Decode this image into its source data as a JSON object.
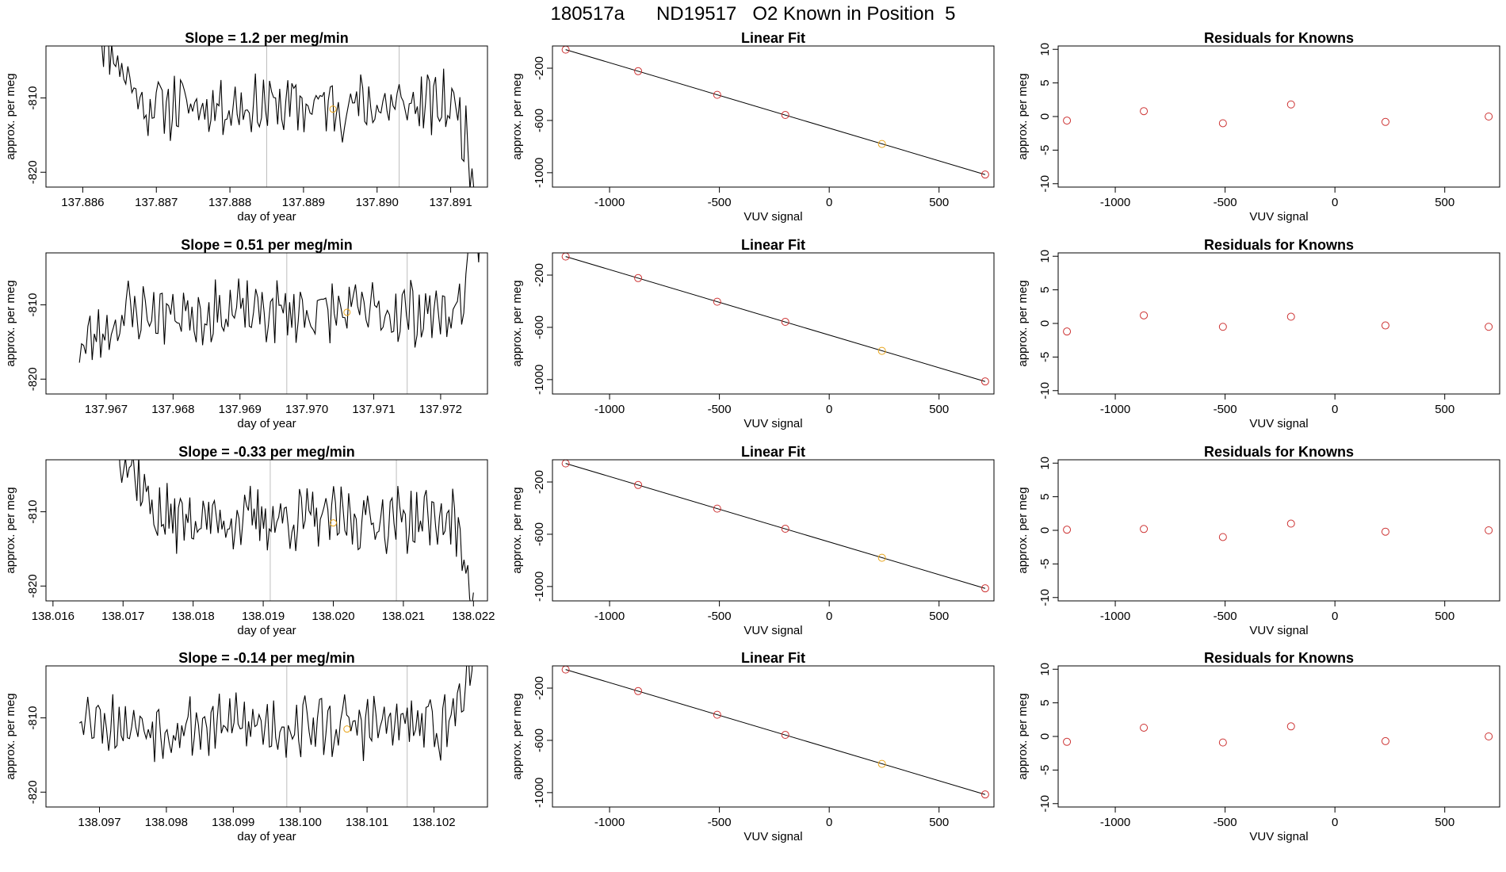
{
  "page": {
    "title": "180517a      ND19517   O2 Known in Position  5"
  },
  "colors": {
    "line": "#000000",
    "points": "#cd3333",
    "highlight": "#e8a317",
    "vertical_markers": "#bebebe"
  },
  "chart_data": [
    {
      "type": "line",
      "row": 1,
      "title": "Slope =  1.2  per meg/min",
      "xlabel": "day of year",
      "ylabel": "approx. per meg",
      "xlim": [
        137.8855,
        137.8915
      ],
      "ylim": [
        -822,
        -803
      ],
      "x_ticks": [
        "137.886",
        "137.887",
        "137.888",
        "137.889",
        "137.890",
        "137.891"
      ],
      "x_tick_values": [
        137.886,
        137.887,
        137.888,
        137.889,
        137.89,
        137.891
      ],
      "y_ticks": [
        "-810",
        "-820"
      ],
      "y_tick_values": [
        -810,
        -820
      ],
      "x_range": [
        137.8862,
        137.8914
      ],
      "trace_shape": {
        "start": -800,
        "settle": -811,
        "end": -824,
        "seed": 11
      },
      "vertical_lines": [
        137.8885,
        137.8903
      ],
      "highlight_point": {
        "x": 137.8894,
        "y": -811.5
      }
    },
    {
      "type": "scatter",
      "row": 1,
      "title": "Linear Fit",
      "xlabel": "VUV signal",
      "ylabel": "approx. per meg",
      "xlim": [
        -1260,
        750
      ],
      "ylim": [
        -1110,
        -30
      ],
      "x_ticks": [
        "-1000",
        "-500",
        "0",
        "500"
      ],
      "x_tick_values": [
        -1000,
        -500,
        0,
        500
      ],
      "y_ticks": [
        "-200",
        "-600",
        "-1000"
      ],
      "y_tick_values": [
        -200,
        -600,
        -1000
      ],
      "x": [
        -1200,
        -870,
        -510,
        -200,
        240,
        710
      ],
      "y": [
        -58,
        -223,
        -404,
        -558,
        -780,
        -1014
      ],
      "highlight_index": 4
    },
    {
      "type": "scatter",
      "row": 1,
      "title": "Residuals for Knowns",
      "xlabel": "VUV signal",
      "ylabel": "approx. per meg",
      "xlim": [
        -1260,
        750
      ],
      "ylim": [
        -10.5,
        10.5
      ],
      "x_ticks": [
        "-1000",
        "-500",
        "0",
        "500"
      ],
      "x_tick_values": [
        -1000,
        -500,
        0,
        500
      ],
      "y_ticks": [
        "-10",
        "-5",
        "0",
        "5",
        "10"
      ],
      "y_tick_values": [
        -10,
        -5,
        0,
        5,
        10
      ],
      "x": [
        -1220,
        -870,
        -510,
        -200,
        230,
        700
      ],
      "y": [
        -0.6,
        0.8,
        -1.0,
        1.8,
        -0.8,
        0.0
      ]
    },
    {
      "type": "line",
      "row": 2,
      "title": "Slope =  0.51  per meg/min",
      "xlabel": "day of year",
      "ylabel": "approx. per meg",
      "xlim": [
        137.9661,
        137.9727
      ],
      "ylim": [
        -822,
        -803
      ],
      "x_ticks": [
        "137.967",
        "137.968",
        "137.969",
        "137.970",
        "137.971",
        "137.972"
      ],
      "x_tick_values": [
        137.967,
        137.968,
        137.969,
        137.97,
        137.971,
        137.972
      ],
      "y_ticks": [
        "-810",
        "-820"
      ],
      "y_tick_values": [
        -810,
        -820
      ],
      "x_range": [
        137.9666,
        137.9726
      ],
      "trace_shape": {
        "start": -816,
        "settle": -811,
        "end": -800,
        "seed": 23
      },
      "vertical_lines": [
        137.9697,
        137.9715
      ],
      "highlight_point": {
        "x": 137.9706,
        "y": -811
      }
    },
    {
      "type": "scatter",
      "row": 2,
      "title": "Linear Fit",
      "xlabel": "VUV signal",
      "ylabel": "approx. per meg",
      "xlim": [
        -1260,
        750
      ],
      "ylim": [
        -1110,
        -30
      ],
      "x_ticks": [
        "-1000",
        "-500",
        "0",
        "500"
      ],
      "x_tick_values": [
        -1000,
        -500,
        0,
        500
      ],
      "y_ticks": [
        "-200",
        "-600",
        "-1000"
      ],
      "y_tick_values": [
        -200,
        -600,
        -1000
      ],
      "x": [
        -1200,
        -870,
        -510,
        -200,
        240,
        710
      ],
      "y": [
        -58,
        -223,
        -404,
        -558,
        -780,
        -1014
      ],
      "highlight_index": 4
    },
    {
      "type": "scatter",
      "row": 2,
      "title": "Residuals for Knowns",
      "xlabel": "VUV signal",
      "ylabel": "approx. per meg",
      "xlim": [
        -1260,
        750
      ],
      "ylim": [
        -10.5,
        10.5
      ],
      "x_ticks": [
        "-1000",
        "-500",
        "0",
        "500"
      ],
      "x_tick_values": [
        -1000,
        -500,
        0,
        500
      ],
      "y_ticks": [
        "-10",
        "-5",
        "0",
        "5",
        "10"
      ],
      "y_tick_values": [
        -10,
        -5,
        0,
        5,
        10
      ],
      "x": [
        -1220,
        -870,
        -510,
        -200,
        230,
        700
      ],
      "y": [
        -1.2,
        1.2,
        -0.5,
        1.0,
        -0.3,
        -0.5
      ]
    },
    {
      "type": "line",
      "row": 3,
      "title": "Slope =  -0.33  per meg/min",
      "xlabel": "day of year",
      "ylabel": "approx. per meg",
      "xlim": [
        138.0159,
        138.0222
      ],
      "ylim": [
        -822,
        -803
      ],
      "x_ticks": [
        "138.016",
        "138.017",
        "138.018",
        "138.019",
        "138.020",
        "138.021",
        "138.022"
      ],
      "x_tick_values": [
        138.016,
        138.017,
        138.018,
        138.019,
        138.02,
        138.021,
        138.022
      ],
      "y_ticks": [
        "-810",
        "-820"
      ],
      "y_tick_values": [
        -810,
        -820
      ],
      "x_range": [
        138.0169,
        138.022
      ],
      "trace_shape": {
        "start": -800,
        "settle": -811,
        "end": -820,
        "seed": 37
      },
      "vertical_lines": [
        138.0191,
        138.0209
      ],
      "highlight_point": {
        "x": 138.02,
        "y": -811.5
      }
    },
    {
      "type": "scatter",
      "row": 3,
      "title": "Linear Fit",
      "xlabel": "VUV signal",
      "ylabel": "approx. per meg",
      "xlim": [
        -1260,
        750
      ],
      "ylim": [
        -1110,
        -30
      ],
      "x_ticks": [
        "-1000",
        "-500",
        "0",
        "500"
      ],
      "x_tick_values": [
        -1000,
        -500,
        0,
        500
      ],
      "y_ticks": [
        "-200",
        "-600",
        "-1000"
      ],
      "y_tick_values": [
        -200,
        -600,
        -1000
      ],
      "x": [
        -1200,
        -870,
        -510,
        -200,
        240,
        710
      ],
      "y": [
        -58,
        -223,
        -404,
        -558,
        -780,
        -1014
      ],
      "highlight_index": 4
    },
    {
      "type": "scatter",
      "row": 3,
      "title": "Residuals for Knowns",
      "xlabel": "VUV signal",
      "ylabel": "approx. per meg",
      "xlim": [
        -1260,
        750
      ],
      "ylim": [
        -10.5,
        10.5
      ],
      "x_ticks": [
        "-1000",
        "-500",
        "0",
        "500"
      ],
      "x_tick_values": [
        -1000,
        -500,
        0,
        500
      ],
      "y_ticks": [
        "-10",
        "-5",
        "0",
        "5",
        "10"
      ],
      "y_tick_values": [
        -10,
        -5,
        0,
        5,
        10
      ],
      "x": [
        -1220,
        -870,
        -510,
        -200,
        230,
        700
      ],
      "y": [
        0.1,
        0.2,
        -1.0,
        1.0,
        -0.2,
        0.0
      ]
    },
    {
      "type": "line",
      "row": 4,
      "title": "Slope =  -0.14  per meg/min",
      "xlabel": "day of year",
      "ylabel": "approx. per meg",
      "xlim": [
        138.0962,
        138.1028
      ],
      "ylim": [
        -822,
        -803
      ],
      "x_ticks": [
        "138.097",
        "138.098",
        "138.099",
        "138.100",
        "138.101",
        "138.102"
      ],
      "x_tick_values": [
        138.097,
        138.098,
        138.099,
        138.1,
        138.101,
        138.102
      ],
      "y_ticks": [
        "-810",
        "-820"
      ],
      "y_tick_values": [
        -810,
        -820
      ],
      "x_range": [
        138.0967,
        138.1026
      ],
      "trace_shape": {
        "start": -809,
        "settle": -811,
        "end": -800,
        "seed": 53
      },
      "vertical_lines": [
        138.0998,
        138.1016
      ],
      "highlight_point": {
        "x": 138.1007,
        "y": -811.5
      }
    },
    {
      "type": "scatter",
      "row": 4,
      "title": "Linear Fit",
      "xlabel": "VUV signal",
      "ylabel": "approx. per meg",
      "xlim": [
        -1260,
        750
      ],
      "ylim": [
        -1110,
        -30
      ],
      "x_ticks": [
        "-1000",
        "-500",
        "0",
        "500"
      ],
      "x_tick_values": [
        -1000,
        -500,
        0,
        500
      ],
      "y_ticks": [
        "-200",
        "-600",
        "-1000"
      ],
      "y_tick_values": [
        -200,
        -600,
        -1000
      ],
      "x": [
        -1200,
        -870,
        -510,
        -200,
        240,
        710
      ],
      "y": [
        -58,
        -223,
        -404,
        -558,
        -780,
        -1014
      ],
      "highlight_index": 4
    },
    {
      "type": "scatter",
      "row": 4,
      "title": "Residuals for Knowns",
      "xlabel": "VUV signal",
      "ylabel": "approx. per meg",
      "xlim": [
        -1260,
        750
      ],
      "ylim": [
        -10.5,
        10.5
      ],
      "x_ticks": [
        "-1000",
        "-500",
        "0",
        "500"
      ],
      "x_tick_values": [
        -1000,
        -500,
        0,
        500
      ],
      "y_ticks": [
        "-10",
        "-5",
        "0",
        "5",
        "10"
      ],
      "y_tick_values": [
        -10,
        -5,
        0,
        5,
        10
      ],
      "x": [
        -1220,
        -870,
        -510,
        -200,
        230,
        700
      ],
      "y": [
        -0.8,
        1.3,
        -0.9,
        1.5,
        -0.7,
        0.0
      ]
    }
  ]
}
